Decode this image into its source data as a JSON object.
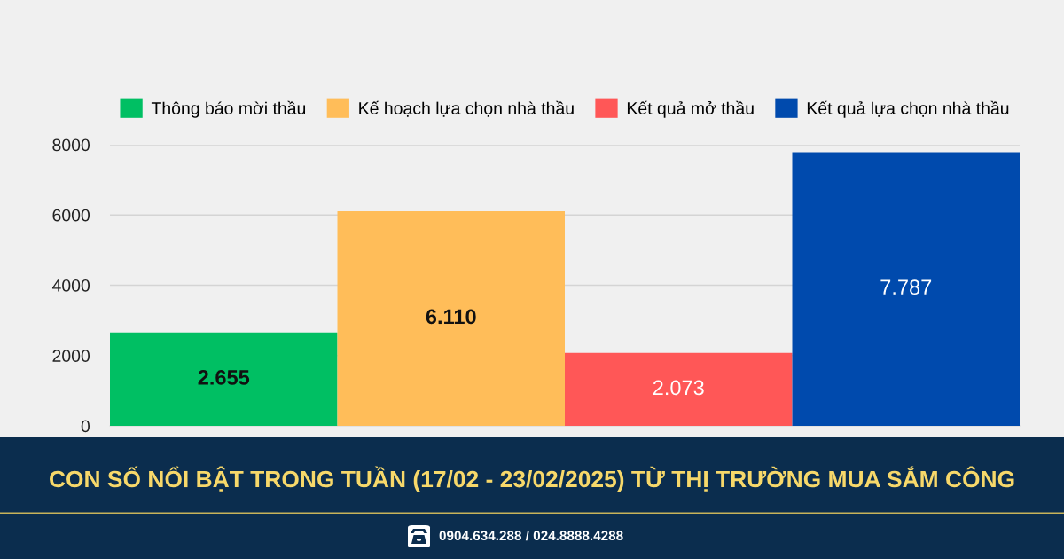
{
  "chart_data": {
    "type": "bar",
    "title": "CON SỐ NỔI BẬT TRONG TUẦN (17/02 - 23/02/2025) TỪ THỊ TRƯỜNG MUA SẮM CÔNG",
    "categories": [
      null
    ],
    "series": [
      {
        "name": "Thông báo mời thầu",
        "color": "#00bf63",
        "values": [
          2655
        ],
        "value_labels": [
          "2.655"
        ]
      },
      {
        "name": "Kế hoạch lựa chọn nhà thầu",
        "color": "#ffbd59",
        "values": [
          6110
        ],
        "value_labels": [
          "6.110"
        ]
      },
      {
        "name": "Kết quả mở thầu",
        "color": "#ff5757",
        "values": [
          2073
        ],
        "value_labels": [
          "2.073"
        ]
      },
      {
        "name": "Kết quả lựa chọn nhà thầu",
        "color": "#004aad",
        "values": [
          7787
        ],
        "value_labels": [
          "7.787"
        ]
      }
    ],
    "ylim": [
      0,
      8000
    ],
    "yticks": [
      0,
      2000,
      4000,
      6000,
      8000
    ],
    "grid": "y",
    "legend": "top",
    "annotations": [
      "0904.634.288 / 024.8888.4288"
    ]
  }
}
